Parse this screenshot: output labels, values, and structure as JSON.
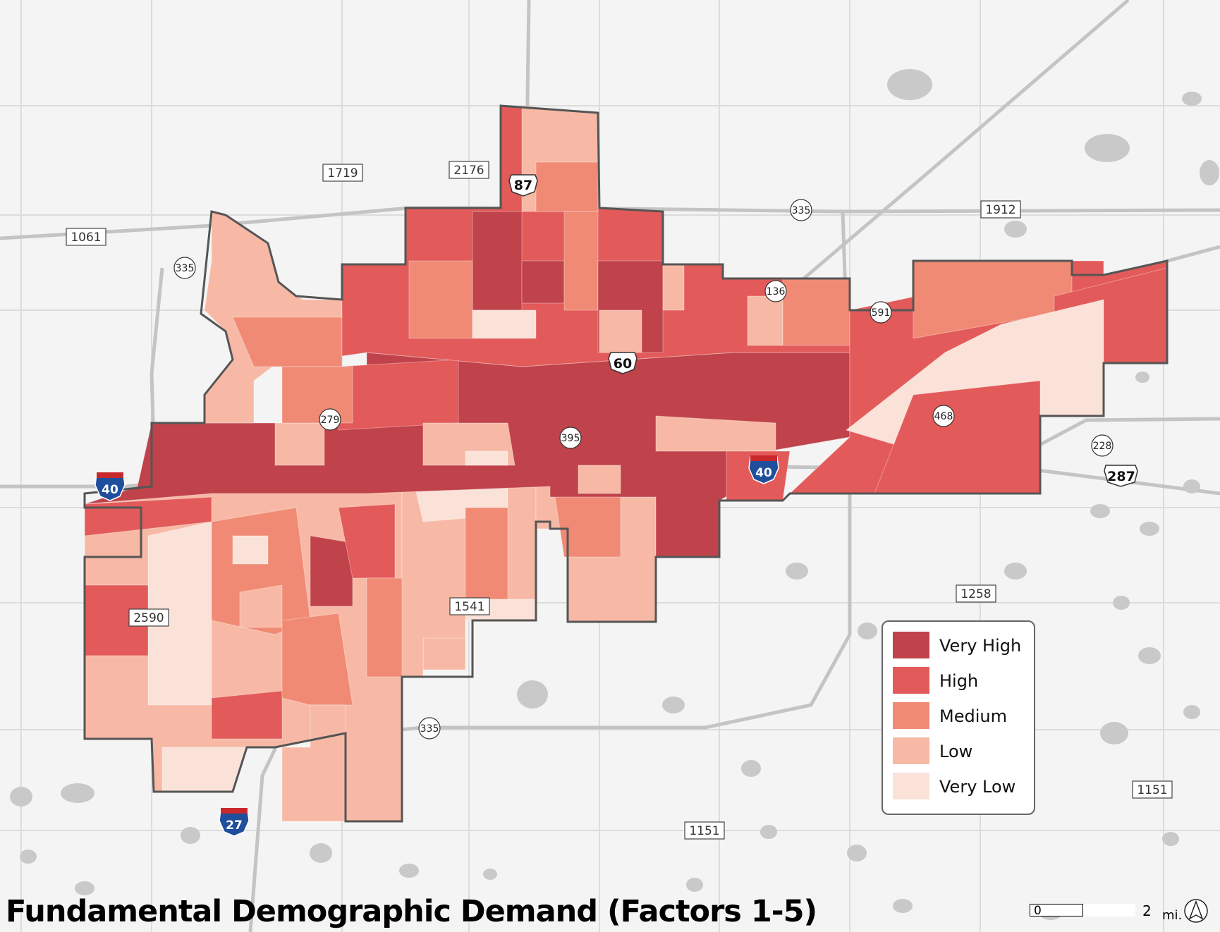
{
  "title": "Fundamental Demographic Demand (Factors 1-5)",
  "legend": {
    "items": [
      {
        "label": "Very High",
        "color": "#c0424a"
      },
      {
        "label": "High",
        "color": "#e25a59"
      },
      {
        "label": "Medium",
        "color": "#f08a74"
      },
      {
        "label": "Low",
        "color": "#f7b9a5"
      },
      {
        "label": "Very Low",
        "color": "#fbe2d9"
      }
    ]
  },
  "road_labels": {
    "r1719": "1719",
    "r2176": "2176",
    "r1061": "1061",
    "r1912": "1912",
    "r2590": "2590",
    "r1541": "1541",
    "r1258": "1258",
    "r1151a": "1151",
    "r1151b": "1151"
  },
  "state_shields": {
    "s335a": "335",
    "s335b": "335",
    "s335c": "335",
    "s136": "136",
    "s591": "591",
    "s279": "279",
    "s395": "395",
    "s468": "468",
    "s228": "228"
  },
  "us_shields": {
    "u87": "87",
    "u60": "60",
    "u287": "287"
  },
  "interstate_shields": {
    "i40a": "40",
    "i40b": "40",
    "i27": "27"
  },
  "scale": {
    "start": "0",
    "end": "2",
    "unit": "mi."
  },
  "colors": {
    "background": "#f4f4f4",
    "road": "#d5d5d5",
    "highway": "#c8c8c8",
    "water": "#c9c9c9",
    "boundary": "#555555"
  }
}
